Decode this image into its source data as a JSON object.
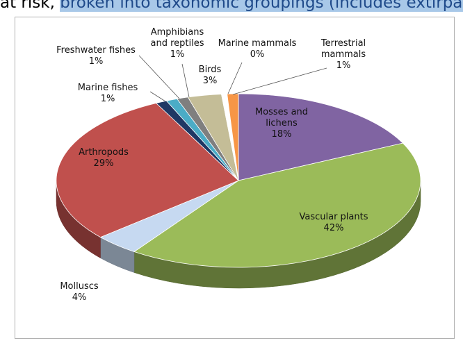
{
  "header": {
    "title_part1": "at risk, ",
    "title_part2": "broken into taxonomic groupings (includes extirpa"
  },
  "colors": {
    "header_highlight": "#a8c8e8",
    "header_text_highlight": "#1f4a8a"
  },
  "chart_data": {
    "type": "pie",
    "style": "3d",
    "slices": [
      {
        "label": "Mosses and lichens",
        "percent_label": "18%",
        "value": 18,
        "color": "#8064a2"
      },
      {
        "label": "Vascular plants",
        "percent_label": "42%",
        "value": 42,
        "color": "#9bbb59"
      },
      {
        "label": "Molluscs",
        "percent_label": "4%",
        "value": 4,
        "color": "#c6d9f1"
      },
      {
        "label": "Arthropods",
        "percent_label": "29%",
        "value": 29,
        "color": "#c0504d"
      },
      {
        "label": "Marine fishes",
        "percent_label": "1%",
        "value": 1,
        "color": "#1f3864"
      },
      {
        "label": "Freshwater fishes",
        "percent_label": "1%",
        "value": 1,
        "color": "#4bacc6"
      },
      {
        "label": "Amphibians and reptiles",
        "percent_label": "1%",
        "value": 1,
        "color": "#7f7f7f"
      },
      {
        "label": "Birds",
        "percent_label": "3%",
        "value": 3,
        "color": "#c4bd97"
      },
      {
        "label": "Marine mammals",
        "percent_label": "0%",
        "value": 0.5,
        "color": "#ffffff"
      },
      {
        "label": "Terrestrial mammals",
        "percent_label": "1%",
        "value": 1,
        "color": "#f79646"
      }
    ]
  }
}
